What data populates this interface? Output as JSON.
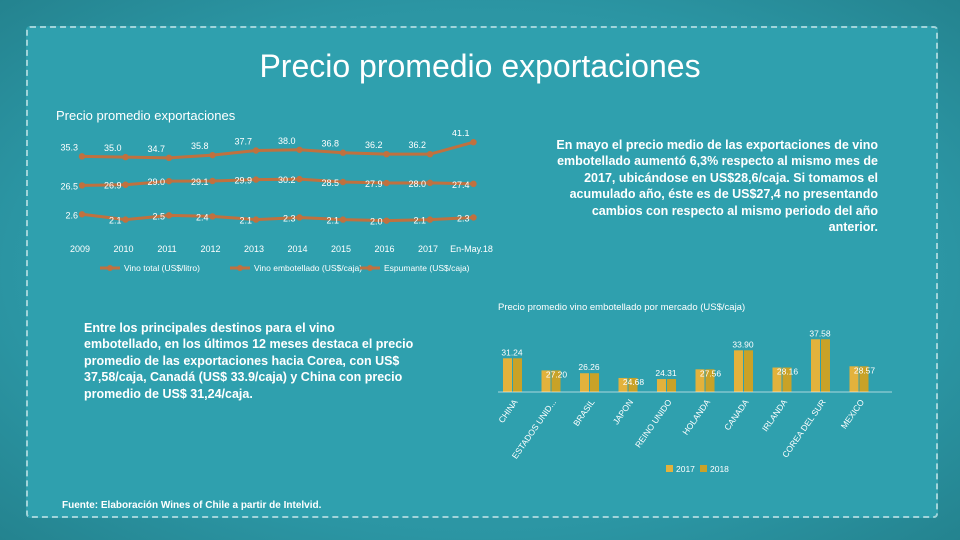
{
  "slide": {
    "title": "Precio promedio exportaciones",
    "para_right": "En mayo el precio medio de las exportaciones de vino embotellado aumentó 6,3% respecto al mismo mes de 2017, ubicándose en US$28,6/caja. Si tomamos el acumulado año, éste es de US$27,4 no presentando cambios con respecto al mismo periodo del año anterior.",
    "para_left": "Entre los principales destinos para el vino embotellado, en los últimos 12 meses destaca el precio promedio de las exportaciones hacia Corea, con US$ 37,58/caja, Canadá (US$ 33.9/caja) y China con precio promedio de US$ 31,24/caja.",
    "source": "Fuente: Elaboración Wines of Chile a partir de Intelvid.",
    "colors": {
      "background": "#2fa0ae",
      "text": "#ffffff",
      "line_series": "#c0713f",
      "bar_2017": "#e3b23c",
      "bar_2018": "#c9a227"
    }
  },
  "chart_data": [
    {
      "type": "line",
      "title": "Precio promedio exportaciones",
      "categories": [
        "2009",
        "2010",
        "2011",
        "2012",
        "2013",
        "2014",
        "2015",
        "2016",
        "2017",
        "En-May.18"
      ],
      "series": [
        {
          "name": "Vino total (US$/litro)",
          "values": [
            2.6,
            2.1,
            2.5,
            2.4,
            2.1,
            2.3,
            2.1,
            2.0,
            2.1,
            2.3
          ],
          "labels": [
            "2.6",
            "2.1",
            "2.5",
            "2.4",
            "2.1",
            "2.3",
            "2.1",
            "2.0",
            "2.1",
            "2.3"
          ]
        },
        {
          "name": "Vino embotellado (US$/caja)",
          "values": [
            26.5,
            26.9,
            29.0,
            29.1,
            29.9,
            30.2,
            28.5,
            27.9,
            28.0,
            27.4
          ],
          "labels": [
            "26.5",
            "26.9",
            "29.0",
            "29.1",
            "29.9",
            "30.2",
            "28.5",
            "27.9",
            "28.0",
            "27.4"
          ]
        },
        {
          "name": "Espumante (US$/caja)",
          "values": [
            35.3,
            35.0,
            34.7,
            35.8,
            37.7,
            38.0,
            36.8,
            36.2,
            36.2,
            41.1
          ],
          "labels": [
            "35.3",
            "35.0",
            "34.7",
            "35.8",
            "37.7",
            "38.0",
            "36.8",
            "36.2",
            "36.2",
            "41.1"
          ]
        }
      ],
      "legend": "bottom",
      "grid": false
    },
    {
      "type": "bar",
      "title": "Precio promedio vino embotellado por mercado (US$/caja)",
      "categories": [
        "CHINA",
        "ESTADOS UNID...",
        "BRASIL",
        "JAPON",
        "REINO UNIDO",
        "HOLANDA",
        "CANADA",
        "IRLANDA",
        "COREA DEL SUR",
        "MEXICO"
      ],
      "series": [
        {
          "name": "2017",
          "values": [
            31.24,
            27.2,
            26.26,
            24.68,
            24.31,
            27.56,
            33.9,
            28.16,
            37.58,
            28.57
          ]
        },
        {
          "name": "2018",
          "values": [
            31.24,
            27.2,
            26.26,
            24.68,
            24.31,
            27.56,
            33.9,
            28.16,
            37.58,
            28.57
          ]
        }
      ],
      "data_labels": [
        "31.24",
        "27.20",
        "26.26",
        "24.68",
        "24.31",
        "27.56",
        "33.90",
        "28.16",
        "37.58",
        "28.57"
      ],
      "legend": "bottom",
      "grid": false
    }
  ]
}
